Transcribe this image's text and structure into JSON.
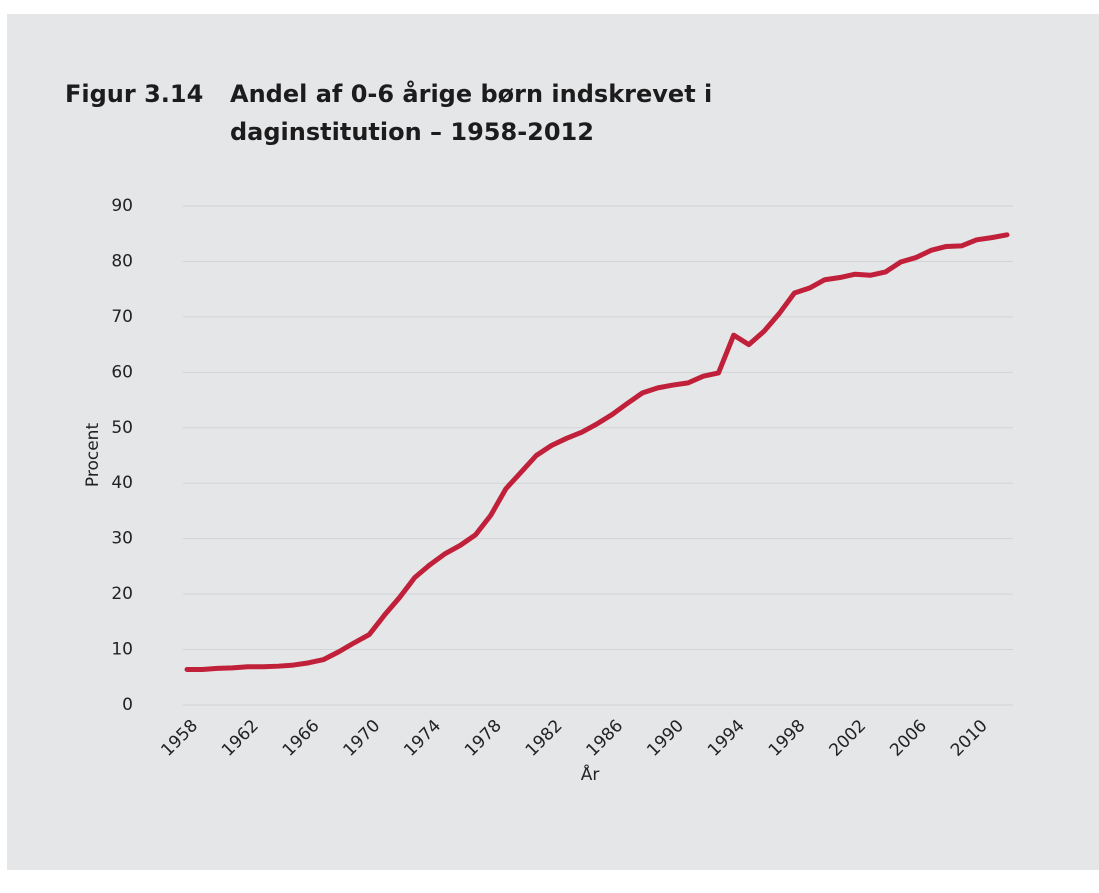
{
  "chart_data": {
    "type": "line",
    "figure_label": "Figur 3.14",
    "title": "Andel af 0-6 årige børn indskrevet i daginstitution – 1958-2012",
    "xlabel": "År",
    "ylabel": "Procent",
    "x": [
      1958,
      1959,
      1960,
      1961,
      1962,
      1963,
      1964,
      1965,
      1966,
      1967,
      1968,
      1969,
      1970,
      1971,
      1972,
      1973,
      1974,
      1975,
      1976,
      1977,
      1978,
      1979,
      1980,
      1981,
      1982,
      1983,
      1984,
      1985,
      1986,
      1987,
      1988,
      1989,
      1990,
      1991,
      1992,
      1993,
      1994,
      1995,
      1996,
      1997,
      1998,
      1999,
      2000,
      2001,
      2002,
      2003,
      2004,
      2005,
      2006,
      2007,
      2008,
      2009,
      2010,
      2011,
      2012
    ],
    "series": [
      {
        "name": "Procent",
        "color": "#c0203a",
        "values": [
          6.4,
          6.4,
          6.6,
          6.7,
          6.9,
          6.9,
          7.0,
          7.2,
          7.6,
          8.2,
          9.6,
          11.2,
          12.7,
          16.2,
          19.4,
          23.0,
          25.3,
          27.3,
          28.8,
          30.7,
          34.2,
          39.0,
          42.0,
          45.0,
          46.8,
          48.1,
          49.2,
          50.7,
          52.4,
          54.4,
          56.3,
          57.2,
          57.7,
          58.1,
          59.3,
          59.9,
          66.7,
          65.0,
          67.4,
          70.6,
          74.3,
          75.2,
          76.7,
          77.1,
          77.7,
          77.5,
          78.1,
          79.9,
          80.7,
          82.0,
          82.7,
          82.8,
          83.9,
          84.3,
          84.8
        ]
      }
    ],
    "xlim": [
      1958,
      2012
    ],
    "xticks": [
      1958,
      1962,
      1966,
      1970,
      1974,
      1978,
      1982,
      1986,
      1990,
      1994,
      1998,
      2002,
      2006,
      2010
    ],
    "ylim": [
      0,
      90
    ],
    "yticks": [
      0,
      10,
      20,
      30,
      40,
      50,
      60,
      70,
      80,
      90
    ],
    "grid": true
  }
}
